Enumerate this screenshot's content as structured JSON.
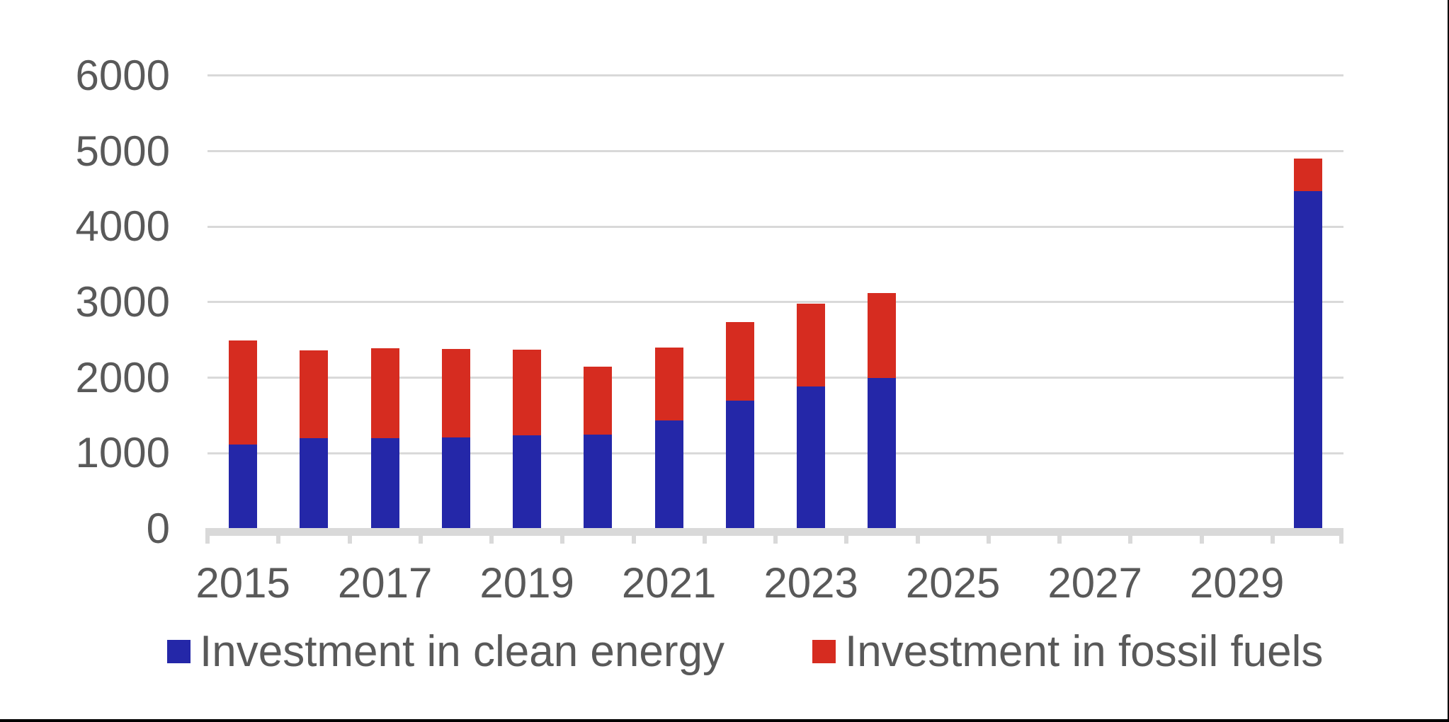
{
  "chart_data": {
    "type": "bar",
    "stacked": true,
    "title": "",
    "xlabel": "",
    "ylabel": "",
    "x_years": [
      2015,
      2016,
      2017,
      2018,
      2019,
      2020,
      2021,
      2022,
      2023,
      2024,
      2030
    ],
    "series": [
      {
        "name": "Investment in clean energy",
        "key": "clean-energy",
        "color": "#2427A8",
        "values": [
          1120,
          1200,
          1200,
          1210,
          1240,
          1250,
          1430,
          1700,
          1880,
          2000,
          4470
        ]
      },
      {
        "name": "Investment in fossil fuels",
        "key": "fossil-fuels",
        "color": "#D62C20",
        "values": [
          1370,
          1160,
          1190,
          1170,
          1130,
          900,
          970,
          1040,
          1100,
          1120,
          430
        ]
      }
    ],
    "totals": [
      2490,
      2360,
      2390,
      2380,
      2370,
      2150,
      2400,
      2740,
      2980,
      3120,
      4900
    ],
    "ylim": [
      0,
      6000
    ],
    "ytick_values": [
      0,
      1000,
      2000,
      3000,
      4000,
      5000,
      6000
    ],
    "ytick_labels": [
      "0",
      "1000",
      "2000",
      "3000",
      "4000",
      "5000",
      "6000"
    ],
    "xtick_label_years": [
      2015,
      2017,
      2019,
      2021,
      2023,
      2025,
      2027,
      2029
    ],
    "xtick_labels": [
      "2015",
      "2017",
      "2019",
      "2021",
      "2023",
      "2025",
      "2027",
      "2029"
    ],
    "x_axis_range_years": [
      2014.5,
      2030.5
    ],
    "grid": "horizontal",
    "legend_position": "bottom",
    "colors": {
      "axis": "#D9D9D9",
      "gridline": "#D9D9D9",
      "text": "#595959",
      "screenshot_border": "#000000"
    }
  }
}
